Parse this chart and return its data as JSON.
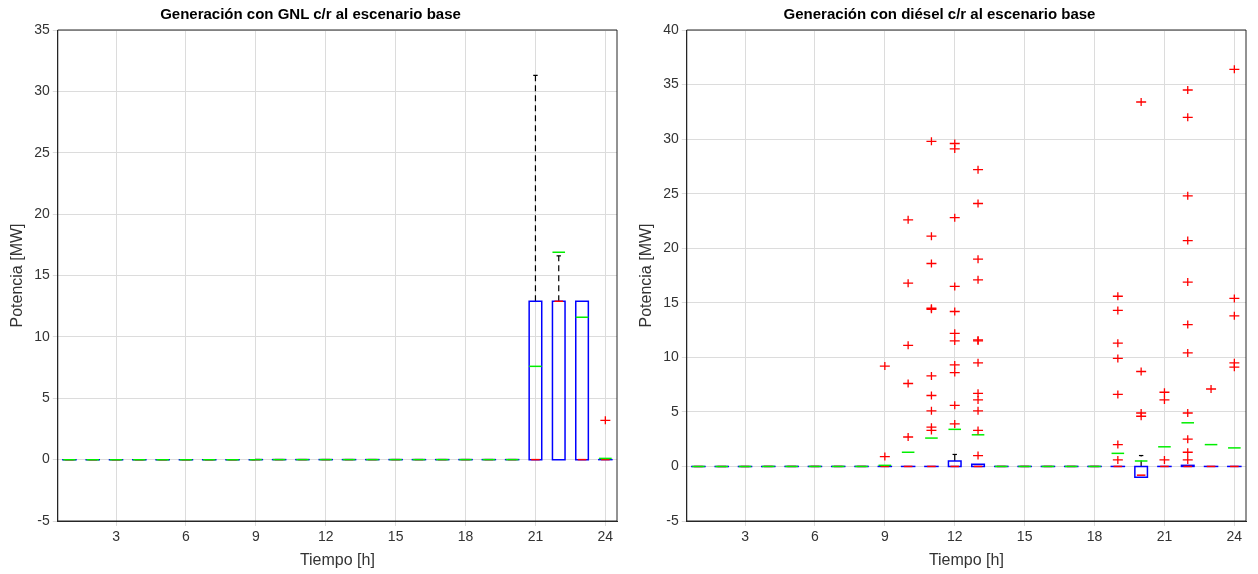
{
  "chart_data": [
    {
      "type": "box",
      "title": "Generación con GNL c/r al escenario base",
      "xlabel": "Tiempo [h]",
      "ylabel": "Potencia [MW]",
      "color": "#0000ff",
      "categories": [
        null,
        null,
        "3",
        null,
        null,
        "6",
        null,
        null,
        "9",
        null,
        null,
        "12",
        null,
        null,
        "15",
        null,
        null,
        "18",
        null,
        null,
        "21",
        null,
        null,
        "24"
      ],
      "ylim": [
        -5,
        35
      ],
      "yticks": [
        -5,
        0,
        5,
        10,
        15,
        20,
        25,
        30,
        35
      ],
      "grid": true,
      "boxes": [
        {
          "low": 0,
          "q1": 0,
          "median": 0,
          "q3": 0,
          "high": 0,
          "mean": 0
        },
        {
          "low": 0,
          "q1": 0,
          "median": 0,
          "q3": 0,
          "high": 0,
          "mean": 0
        },
        {
          "low": 0,
          "q1": 0,
          "median": 0,
          "q3": 0,
          "high": 0,
          "mean": 0
        },
        {
          "low": 0,
          "q1": 0,
          "median": 0,
          "q3": 0,
          "high": 0,
          "mean": 0
        },
        {
          "low": 0,
          "q1": 0,
          "median": 0,
          "q3": 0,
          "high": 0,
          "mean": 0
        },
        {
          "low": 0,
          "q1": 0,
          "median": 0,
          "q3": 0,
          "high": 0,
          "mean": 0
        },
        {
          "low": 0,
          "q1": 0,
          "median": 0,
          "q3": 0,
          "high": 0,
          "mean": 0
        },
        {
          "low": 0,
          "q1": 0,
          "median": 0,
          "q3": 0,
          "high": 0,
          "mean": 0
        },
        {
          "low": 0,
          "q1": 0,
          "median": 0,
          "q3": 0,
          "high": 0,
          "mean": 0
        },
        {
          "low": 0,
          "q1": 0,
          "median": 0,
          "q3": 0,
          "high": 0,
          "mean": 0
        },
        {
          "low": 0,
          "q1": 0,
          "median": 0,
          "q3": 0,
          "high": 0,
          "mean": 0
        },
        {
          "low": 0,
          "q1": 0,
          "median": 0,
          "q3": 0,
          "high": 0,
          "mean": 0
        },
        {
          "low": 0,
          "q1": 0,
          "median": 0,
          "q3": 0,
          "high": 0,
          "mean": 0
        },
        {
          "low": 0,
          "q1": 0,
          "median": 0,
          "q3": 0,
          "high": 0,
          "mean": 0
        },
        {
          "low": 0,
          "q1": 0,
          "median": 0,
          "q3": 0,
          "high": 0,
          "mean": 0
        },
        {
          "low": 0,
          "q1": 0,
          "median": 0,
          "q3": 0,
          "high": 0,
          "mean": 0
        },
        {
          "low": 0,
          "q1": 0,
          "median": 0,
          "q3": 0,
          "high": 0,
          "mean": 0
        },
        {
          "low": 0,
          "q1": 0,
          "median": 0,
          "q3": 0,
          "high": 0,
          "mean": 0
        },
        {
          "low": 0,
          "q1": 0,
          "median": 0,
          "q3": 0,
          "high": 0,
          "mean": 0
        },
        {
          "low": 0,
          "q1": 0,
          "median": 0,
          "q3": 0,
          "high": 0,
          "mean": 0
        },
        {
          "low": 0,
          "q1": 0,
          "median": 0,
          "q3": 12.9,
          "high": 31.3,
          "mean": 7.6
        },
        {
          "low": 0,
          "q1": 0,
          "median": 12.9,
          "q3": 12.9,
          "high": 16.6,
          "mean": 16.9
        },
        {
          "low": 0,
          "q1": 0,
          "median": 0,
          "q3": 12.9,
          "high": 12.9,
          "mean": 11.6
        },
        {
          "low": 0,
          "q1": 0,
          "median": 0,
          "q3": 0,
          "high": 0,
          "mean": 0.1,
          "outliers": [
            3.2
          ]
        }
      ]
    },
    {
      "type": "box",
      "title": "Generación con diésel c/r al escenario base",
      "xlabel": "Tiempo [h]",
      "ylabel": "Potencia [MW]",
      "color": "#0000ff",
      "categories": [
        null,
        null,
        "3",
        null,
        null,
        "6",
        null,
        null,
        "9",
        null,
        null,
        "12",
        null,
        null,
        "15",
        null,
        null,
        "18",
        null,
        null,
        "21",
        null,
        null,
        "24"
      ],
      "ylim": [
        -5,
        40
      ],
      "yticks": [
        -5,
        0,
        5,
        10,
        15,
        20,
        25,
        30,
        35,
        40
      ],
      "grid": true,
      "boxes": [
        {
          "low": 0,
          "q1": 0,
          "median": 0,
          "q3": 0,
          "high": 0,
          "mean": 0
        },
        {
          "low": 0,
          "q1": 0,
          "median": 0,
          "q3": 0,
          "high": 0,
          "mean": 0
        },
        {
          "low": 0,
          "q1": 0,
          "median": 0,
          "q3": 0,
          "high": 0,
          "mean": 0
        },
        {
          "low": 0,
          "q1": 0,
          "median": 0,
          "q3": 0,
          "high": 0,
          "mean": 0
        },
        {
          "low": 0,
          "q1": 0,
          "median": 0,
          "q3": 0,
          "high": 0,
          "mean": 0
        },
        {
          "low": 0,
          "q1": 0,
          "median": 0,
          "q3": 0,
          "high": 0,
          "mean": 0
        },
        {
          "low": 0,
          "q1": 0,
          "median": 0,
          "q3": 0,
          "high": 0,
          "mean": 0
        },
        {
          "low": 0,
          "q1": 0,
          "median": 0,
          "q3": 0,
          "high": 0,
          "mean": 0
        },
        {
          "low": 0,
          "q1": 0,
          "median": 0,
          "q3": 0,
          "high": 0,
          "mean": 0.1,
          "outliers": [
            9.2,
            0.9
          ]
        },
        {
          "low": 0,
          "q1": 0,
          "median": 0,
          "q3": 0,
          "high": 0,
          "mean": 1.3,
          "outliers": [
            22.6,
            16.8,
            11.1,
            7.6,
            2.7
          ]
        },
        {
          "low": 0,
          "q1": 0,
          "median": 0,
          "q3": 0,
          "high": 0,
          "mean": 2.6,
          "outliers": [
            29.8,
            21.1,
            18.6,
            14.5,
            14.4,
            8.3,
            6.5,
            5.1,
            3.6,
            3.3
          ]
        },
        {
          "low": 0,
          "q1": 0,
          "median": 0,
          "q3": 0.5,
          "high": 1.1,
          "mean": 3.4,
          "outliers": [
            29.6,
            29.1,
            22.8,
            16.5,
            14.2,
            12.2,
            11.5,
            9.3,
            8.6,
            5.6,
            3.9
          ]
        },
        {
          "low": 0,
          "q1": 0,
          "median": 0,
          "q3": 0.2,
          "high": 0.2,
          "mean": 2.9,
          "outliers": [
            27.2,
            24.1,
            19.0,
            17.1,
            11.6,
            11.5,
            9.5,
            6.7,
            6.1,
            5.1,
            3.3,
            1.0
          ]
        },
        {
          "low": 0,
          "q1": 0,
          "median": 0,
          "q3": 0,
          "high": 0,
          "mean": 0
        },
        {
          "low": 0,
          "q1": 0,
          "median": 0,
          "q3": 0,
          "high": 0,
          "mean": 0
        },
        {
          "low": 0,
          "q1": 0,
          "median": 0,
          "q3": 0,
          "high": 0,
          "mean": 0
        },
        {
          "low": 0,
          "q1": 0,
          "median": 0,
          "q3": 0,
          "high": 0,
          "mean": 0
        },
        {
          "low": 0,
          "q1": 0,
          "median": 0,
          "q3": 0,
          "high": 0,
          "mean": 0
        },
        {
          "low": 0,
          "q1": 0,
          "median": 0,
          "q3": 0,
          "high": 0,
          "mean": 1.2,
          "outliers": [
            15.6,
            14.3,
            11.3,
            9.9,
            6.6,
            2.0,
            0.6
          ]
        },
        {
          "low": -1.0,
          "q1": -1.0,
          "median": -0.8,
          "q3": 0,
          "high": 1.0,
          "mean": 0.5,
          "outliers": [
            33.4,
            8.7,
            4.9,
            4.6
          ]
        },
        {
          "low": 0,
          "q1": 0,
          "median": 0,
          "q3": 0,
          "high": 0,
          "mean": 1.8,
          "outliers": [
            6.8,
            6.1,
            0.6
          ]
        },
        {
          "low": 0,
          "q1": 0,
          "median": 0,
          "q3": 0.1,
          "high": 0.1,
          "mean": 4.0,
          "outliers": [
            34.5,
            32.0,
            24.8,
            20.7,
            16.9,
            13.0,
            10.4,
            4.9,
            2.5,
            1.3,
            0.6
          ]
        },
        {
          "low": 0,
          "q1": 0,
          "median": 0,
          "q3": 0,
          "high": 0,
          "mean": 2.0,
          "outliers": [
            7.1
          ]
        },
        {
          "low": 0,
          "q1": 0,
          "median": 0,
          "q3": 0,
          "high": 0,
          "mean": 1.7,
          "outliers": [
            36.4,
            15.4,
            13.8,
            9.5,
            9.1
          ]
        }
      ]
    }
  ]
}
